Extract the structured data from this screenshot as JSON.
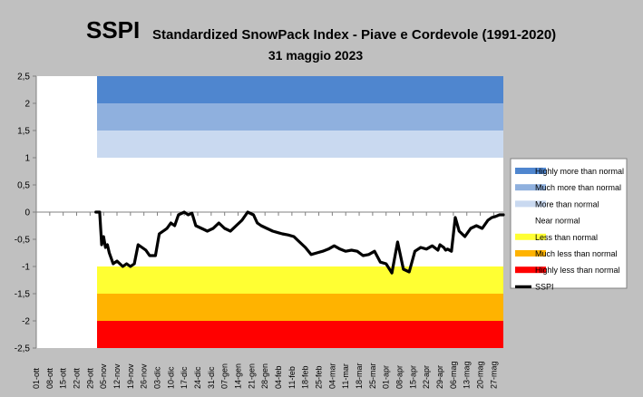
{
  "header": {
    "main_title": "SSPI",
    "subtitle": "Standardized SnowPack Index - Piave e Cordevole  (1991-2020)",
    "date": "31 maggio 2023"
  },
  "chart_data": {
    "type": "line",
    "title": "Standardized SnowPack Index - Piave e Cordevole  (1991-2020)",
    "xlabel": "",
    "ylabel": "",
    "ylim": [
      -2.5,
      2.5
    ],
    "yticks": [
      "2,5",
      "2",
      "1,5",
      "1",
      "0,5",
      "0",
      "-0,5",
      "-1",
      "-1,5",
      "-2",
      "-2,5"
    ],
    "x_tick_labels": [
      "01-ott",
      "08-ott",
      "15-ott",
      "22-ott",
      "29-ott",
      "05-nov",
      "12-nov",
      "19-nov",
      "26-nov",
      "03-dic",
      "10-dic",
      "17-dic",
      "24-dic",
      "31-dic",
      "07-gen",
      "14-gen",
      "21-gen",
      "28-gen",
      "04-feb",
      "11-feb",
      "18-feb",
      "25-feb",
      "04-mar",
      "11-mar",
      "18-mar",
      "25-mar",
      "01-apr",
      "08-apr",
      "15-apr",
      "22-apr",
      "29-apr",
      "06-mag",
      "13-mag",
      "20-mag",
      "27-mag"
    ],
    "x_range_days": [
      0,
      243
    ],
    "grid": false,
    "legend_position": "right",
    "bands": [
      {
        "name": "Highly more than normal",
        "from": 2,
        "to": 2.5,
        "color": "#4f86cf"
      },
      {
        "name": "Much more than normal",
        "from": 1.5,
        "to": 2,
        "color": "#8fb0de"
      },
      {
        "name": "More than normal",
        "from": 1,
        "to": 1.5,
        "color": "#c9d9f0"
      },
      {
        "name": "Near normal",
        "from": -1,
        "to": 1,
        "color": "#ffffff"
      },
      {
        "name": "Less than normal",
        "from": -1.5,
        "to": -1,
        "color": "#ffff33"
      },
      {
        "name": "Much less than normal",
        "from": -2,
        "to": -1.5,
        "color": "#ffb300"
      },
      {
        "name": "Highly less than normal",
        "from": -2.5,
        "to": -2,
        "color": "#ff0000"
      }
    ],
    "series": [
      {
        "name": "SSPI",
        "color": "#000000",
        "x": [
          31,
          33,
          34,
          35,
          36,
          37,
          38,
          40,
          42,
          45,
          47,
          49,
          51,
          53,
          55,
          57,
          59,
          62,
          64,
          66,
          68,
          70,
          72,
          74,
          77,
          79,
          81,
          83,
          86,
          89,
          92,
          95,
          98,
          101,
          104,
          107,
          110,
          113,
          115,
          117,
          120,
          123,
          126,
          128,
          131,
          134,
          137,
          140,
          143,
          146,
          149,
          152,
          155,
          158,
          161,
          164,
          167,
          170,
          173,
          176,
          179,
          182,
          185,
          188,
          191,
          194,
          197,
          200,
          203,
          206,
          209,
          210,
          212,
          213,
          214,
          216,
          218,
          220,
          223,
          226,
          229,
          232,
          233,
          234,
          235,
          237,
          239,
          241,
          243
        ],
        "y": [
          0.0,
          0.0,
          -0.6,
          -0.45,
          -0.65,
          -0.6,
          -0.75,
          -0.95,
          -0.9,
          -1.0,
          -0.95,
          -1.0,
          -0.95,
          -0.6,
          -0.65,
          -0.7,
          -0.8,
          -0.8,
          -0.4,
          -0.35,
          -0.3,
          -0.2,
          -0.25,
          -0.05,
          0.0,
          -0.05,
          -0.02,
          -0.25,
          -0.3,
          -0.35,
          -0.3,
          -0.2,
          -0.3,
          -0.35,
          -0.25,
          -0.15,
          0.0,
          -0.05,
          -0.2,
          -0.25,
          -0.3,
          -0.35,
          -0.38,
          -0.4,
          -0.42,
          -0.45,
          -0.55,
          -0.65,
          -0.78,
          -0.75,
          -0.72,
          -0.68,
          -0.62,
          -0.68,
          -0.72,
          -0.7,
          -0.72,
          -0.8,
          -0.78,
          -0.72,
          -0.92,
          -0.95,
          -1.12,
          -0.55,
          -1.05,
          -1.1,
          -0.72,
          -0.65,
          -0.68,
          -0.62,
          -0.7,
          -0.6,
          -0.65,
          -0.7,
          -0.68,
          -0.72,
          -0.1,
          -0.35,
          -0.45,
          -0.3,
          -0.25,
          -0.3,
          -0.25,
          -0.2,
          -0.15,
          -0.1,
          -0.08,
          -0.05,
          -0.05
        ]
      }
    ]
  }
}
